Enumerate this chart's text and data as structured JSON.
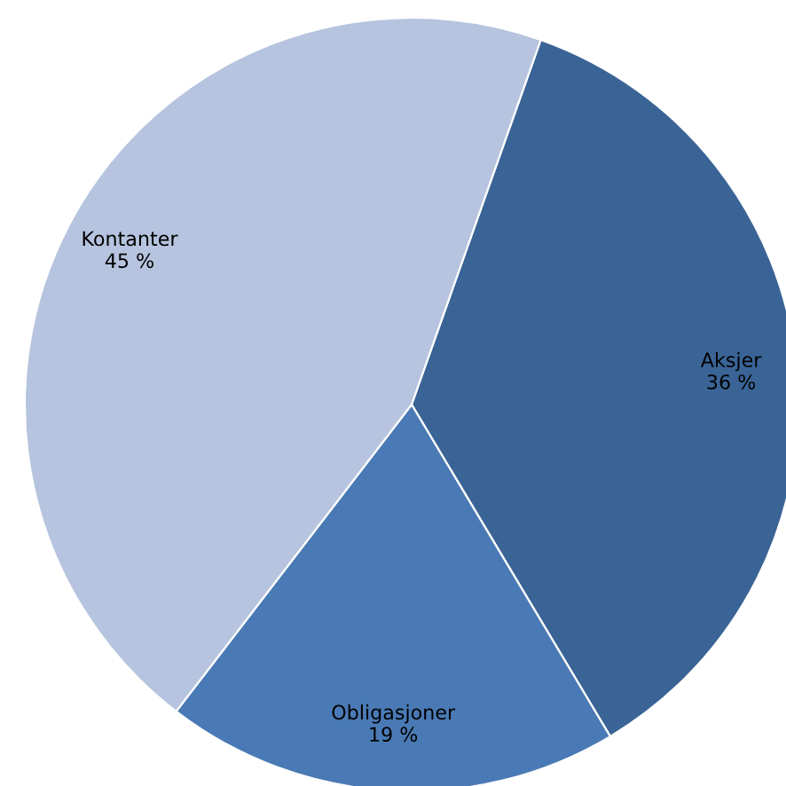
{
  "chart_data": {
    "type": "pie",
    "categories": [
      "Aksjer",
      "Obligasjoner",
      "Kontanter"
    ],
    "values": [
      36,
      19,
      45
    ],
    "colors": [
      "#3a6496",
      "#4a7ab5",
      "#b6c4df"
    ],
    "value_labels": [
      "36 %",
      "19 %",
      "45 %"
    ]
  }
}
